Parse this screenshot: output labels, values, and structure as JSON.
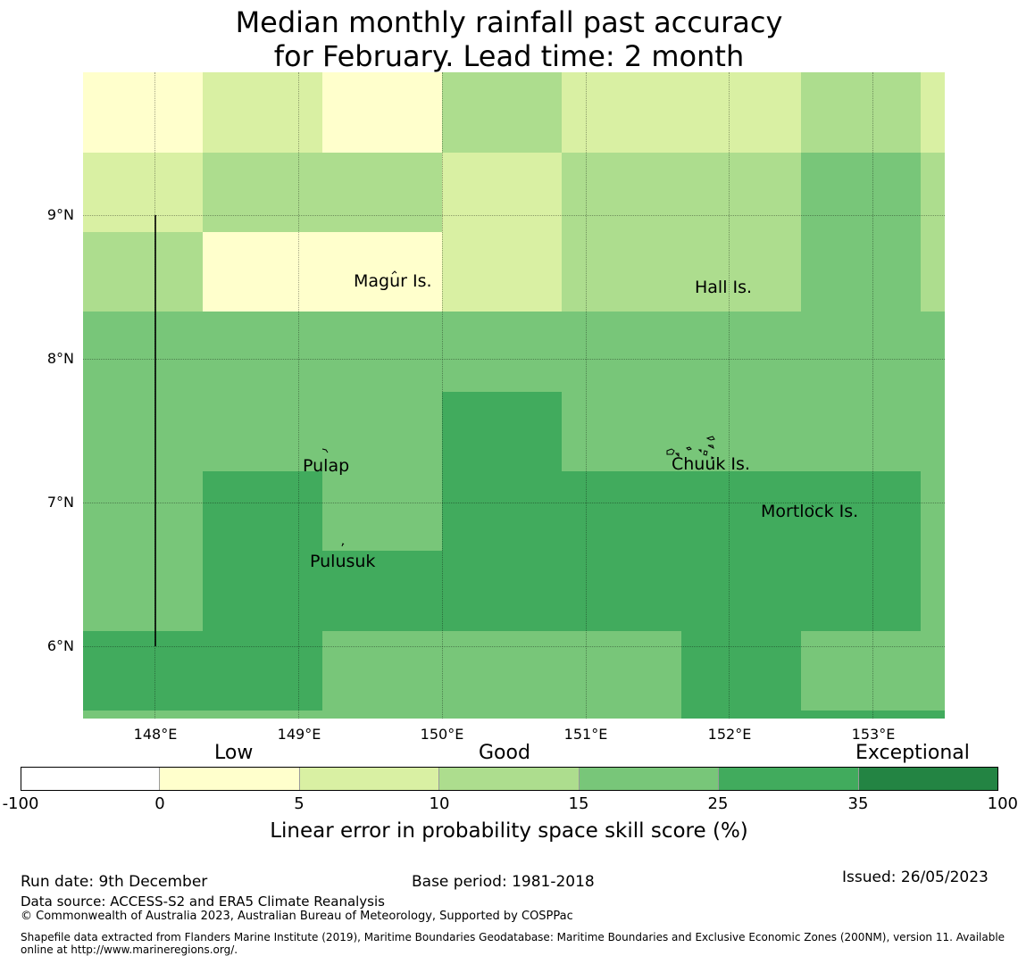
{
  "title_line1": "Median monthly rainfall past accuracy",
  "title_line2": "for February. Lead time: 2 month",
  "map": {
    "latitude_labels": [
      "9°N",
      "8°N",
      "7°N",
      "6°N"
    ],
    "longitude_labels": [
      "148°E",
      "149°E",
      "150°E",
      "151°E",
      "152°E",
      "153°E"
    ],
    "place_names": [
      "Magur Is.",
      "Hall Is.",
      "Pulap",
      "Chuuk Is.",
      "Mortlock Is.",
      "Pulusuk"
    ]
  },
  "colorbar": {
    "categories": [
      "Low",
      "Good",
      "Exceptional"
    ],
    "ticks": [
      "-100",
      "0",
      "5",
      "10",
      "15",
      "25",
      "35",
      "100"
    ],
    "colors": [
      "#ffffff",
      "#ffffcc",
      "#d9f0a3",
      "#addd8e",
      "#78c679",
      "#41ab5d",
      "#238443"
    ],
    "label": "Linear error in probability space skill score (%)"
  },
  "footer": {
    "run_date": "Run date: 9th December",
    "base_period": "Base period: 1981-2018",
    "issued": "Issued: 26/05/2023",
    "data_source": "Data source: ACCESS-S2 and ERA5 Climate Reanalysis",
    "copyright": "© Commonwealth of Australia 2023, Australian Bureau of Meteorology, Supported by COSPPac",
    "shapefile": "Shapefile data extracted from Flanders Marine Institute (2019), Maritime Boundaries Geodatabase: Maritime Boundaries and Exclusive Economic Zones (200NM), version 11. Available online at http://www.marineregions.org/."
  }
}
